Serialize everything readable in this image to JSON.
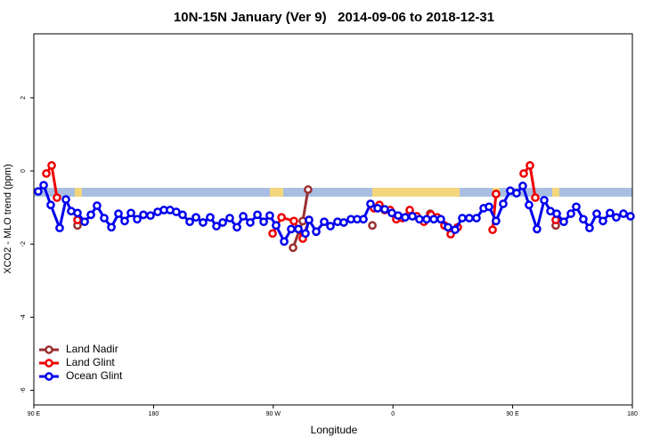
{
  "chart_data": {
    "type": "line",
    "title": "10N-15N January (Ver 9)   2014-09-06 to 2018-12-31",
    "x_label": "Longitude",
    "y_label": "XCO2 - MLO trend (ppm)",
    "xlim": [
      90,
      540
    ],
    "ylim": [
      -6.4,
      3.75
    ],
    "xticks": [
      {
        "value": 90,
        "label": "90 E"
      },
      {
        "value": 180,
        "label": "180"
      },
      {
        "value": 270,
        "label": "90 W"
      },
      {
        "value": 360,
        "label": "0"
      },
      {
        "value": 450,
        "label": "90 E"
      },
      {
        "value": 540,
        "label": "180"
      }
    ],
    "yticks": [
      -6,
      -4,
      -2,
      0,
      2
    ],
    "legend": "bottom-left",
    "series": [
      {
        "name": "Land Nadir",
        "color": "#9b2f2f",
        "x": [
          122.8,
          null,
          284.9,
          292.2,
          296.2,
          null,
          344.5,
          null,
          363.2,
          null,
          388.0,
          null,
          437.5,
          null,
          482.4
        ],
        "values": [
          -1.49,
          null,
          -2.1,
          -1.37,
          -0.51,
          null,
          -1.49,
          null,
          -1.29,
          null,
          -1.17,
          null,
          -0.63,
          null,
          -1.49
        ]
      },
      {
        "name": "Land Glint",
        "color": "#ee0000",
        "x": [
          99.4,
          103.4,
          107.4,
          null,
          122.8,
          null,
          269.5,
          276.2,
          285.5,
          292.2,
          296.9,
          null,
          345.8,
          349.8,
          353.8,
          357.9,
          362.5,
          367.2,
          372.6,
          377.9,
          383.3,
          388.6,
          393.3,
          398.7,
          403.4,
          408.7,
          null,
          434.9,
          437.5,
          null,
          458.3,
          463.0,
          467.0,
          null,
          482.4
        ],
        "values": [
          -0.07,
          0.15,
          -0.73,
          null,
          -1.34,
          null,
          -1.71,
          -1.27,
          -1.37,
          -1.85,
          -1.34,
          null,
          -1.02,
          -0.93,
          -1.07,
          -1.07,
          -1.32,
          -1.29,
          -1.07,
          -1.24,
          -1.39,
          -1.2,
          -1.27,
          -1.49,
          -1.73,
          -1.54,
          null,
          -1.61,
          -0.63,
          null,
          -0.07,
          0.15,
          -0.73,
          null,
          -1.34
        ]
      },
      {
        "name": "Ocean Glint",
        "color": "#0000ee",
        "x": [
          93.3,
          97.4,
          102.7,
          109.4,
          114.1,
          118.1,
          122.8,
          128.2,
          132.9,
          137.5,
          142.9,
          148.3,
          153.6,
          158.3,
          163.0,
          167.7,
          172.4,
          177.7,
          183.1,
          187.8,
          192.4,
          197.1,
          201.8,
          207.2,
          211.9,
          217.2,
          222.6,
          227.3,
          232.0,
          237.3,
          242.7,
          247.4,
          252.7,
          258.1,
          262.8,
          267.4,
          272.1,
          278.2,
          283.5,
          288.9,
          294.2,
          296.9,
          302.3,
          308.3,
          313.0,
          318.3,
          323.0,
          328.4,
          333.1,
          337.8,
          343.1,
          348.5,
          353.8,
          359.2,
          363.9,
          369.2,
          374.6,
          379.9,
          385.3,
          390.7,
          396.0,
          401.4,
          406.7,
          412.1,
          417.4,
          422.8,
          428.2,
          432.2,
          437.5,
          442.9,
          448.2,
          452.9,
          457.6,
          462.3,
          468.3,
          473.7,
          478.4,
          483.1,
          488.4,
          493.8,
          497.8,
          503.1,
          507.8,
          513.2,
          517.9,
          523.2,
          527.9,
          533.3,
          538.6
        ],
        "values": [
          -0.56,
          -0.39,
          -0.93,
          -1.56,
          -0.78,
          -1.1,
          -1.15,
          -1.39,
          -1.2,
          -0.95,
          -1.29,
          -1.54,
          -1.17,
          -1.37,
          -1.15,
          -1.32,
          -1.2,
          -1.22,
          -1.12,
          -1.07,
          -1.07,
          -1.12,
          -1.2,
          -1.39,
          -1.27,
          -1.41,
          -1.27,
          -1.51,
          -1.41,
          -1.29,
          -1.54,
          -1.24,
          -1.41,
          -1.2,
          -1.39,
          -1.22,
          -1.49,
          -1.93,
          -1.59,
          -1.59,
          -1.71,
          -1.34,
          -1.66,
          -1.39,
          -1.51,
          -1.39,
          -1.41,
          -1.32,
          -1.32,
          -1.32,
          -0.9,
          -1.02,
          -1.05,
          -1.15,
          -1.22,
          -1.27,
          -1.24,
          -1.32,
          -1.32,
          -1.32,
          -1.32,
          -1.54,
          -1.61,
          -1.29,
          -1.29,
          -1.29,
          -1.02,
          -0.98,
          -1.37,
          -0.9,
          -0.54,
          -0.61,
          -0.41,
          -0.93,
          -1.59,
          -0.8,
          -1.1,
          -1.17,
          -1.39,
          -1.17,
          -0.98,
          -1.32,
          -1.56,
          -1.17,
          -1.37,
          -1.15,
          -1.27,
          -1.17,
          -1.24
        ]
      }
    ]
  }
}
